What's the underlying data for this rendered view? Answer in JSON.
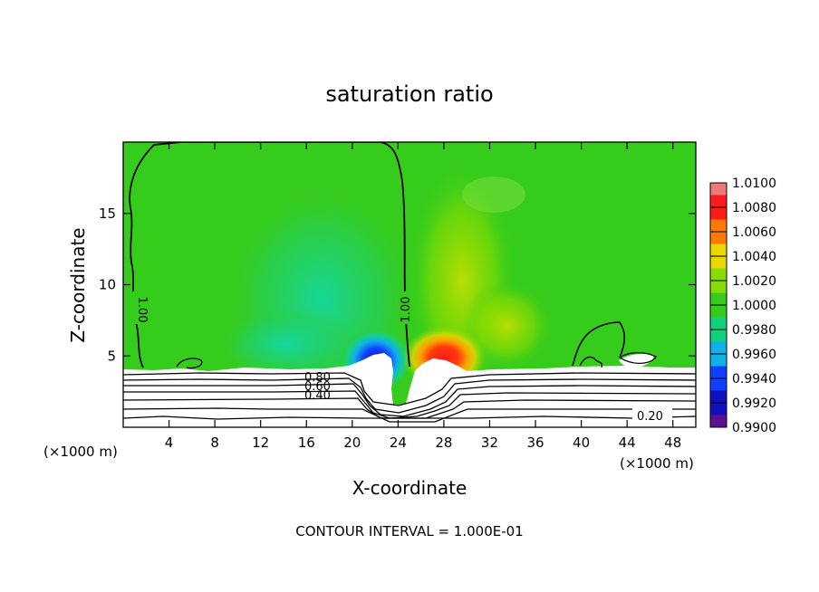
{
  "chart_data": {
    "type": "heatmap",
    "title": "saturation ratio",
    "xlabel": "X-coordinate",
    "ylabel": "Z-coordinate",
    "x_unit_left": "(×1000 m)",
    "x_unit_right": "(×1000 m)",
    "xlim": [
      0,
      50
    ],
    "ylim": [
      0,
      20
    ],
    "x_ticks": [
      "4",
      "8",
      "12",
      "16",
      "20",
      "24",
      "28",
      "32",
      "36",
      "40",
      "44",
      "48"
    ],
    "x_tick_values": [
      4,
      8,
      12,
      16,
      20,
      24,
      28,
      32,
      36,
      40,
      44,
      48
    ],
    "y_ticks": [
      "5",
      "10",
      "15"
    ],
    "y_tick_values": [
      5,
      10,
      15
    ],
    "colorbar": {
      "labels": [
        "1.0100",
        "1.0080",
        "1.0060",
        "1.0040",
        "1.0020",
        "1.0000",
        "0.9980",
        "0.9960",
        "0.9940",
        "0.9920",
        "0.9900"
      ],
      "colors": [
        "#f07878",
        "#ff1a1a",
        "#ff7a00",
        "#e8d800",
        "#88dd00",
        "#36cc1c",
        "#10d080",
        "#10b0e8",
        "#1040ff",
        "#1010c0",
        "#5a1090"
      ]
    },
    "contour_labels": [
      {
        "text": "1.00",
        "x": 1.0,
        "z": 8.5
      },
      {
        "text": "1.00",
        "x": 24.5,
        "z": 8.5
      },
      {
        "text": "0.80",
        "x": 17.5,
        "z": 3.8
      },
      {
        "text": "0.60",
        "x": 17.5,
        "z": 3.2
      },
      {
        "text": "0.40",
        "x": 17.5,
        "z": 2.4
      },
      {
        "text": "0.20",
        "x": 46.0,
        "z": 0.6
      }
    ],
    "contour_interval_note": "CONTOUR INTERVAL = 1.000E-01"
  }
}
